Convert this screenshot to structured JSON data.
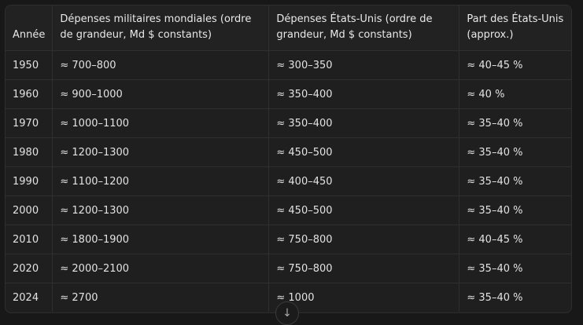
{
  "table": {
    "headers": [
      "Année",
      "Dépenses militaires mondiales (ordre de grandeur, Md $ constants)",
      "Dépenses États-Unis (ordre de grandeur, Md $ constants)",
      "Part des États-Unis (approx.)"
    ],
    "rows": [
      [
        "1950",
        "≈ 700–800",
        "≈ 300–350",
        "≈ 40–45 %"
      ],
      [
        "1960",
        "≈ 900–1000",
        "≈ 350–400",
        "≈ 40 %"
      ],
      [
        "1970",
        "≈ 1000–1100",
        "≈ 350–400",
        "≈ 35–40 %"
      ],
      [
        "1980",
        "≈ 1200–1300",
        "≈ 450–500",
        "≈ 35–40 %"
      ],
      [
        "1990",
        "≈ 1100–1200",
        "≈ 400–450",
        "≈ 35–40 %"
      ],
      [
        "2000",
        "≈ 1200–1300",
        "≈ 450–500",
        "≈ 35–40 %"
      ],
      [
        "2010",
        "≈ 1800–1900",
        "≈ 750–800",
        "≈ 40–45 %"
      ],
      [
        "2020",
        "≈ 2000–2100",
        "≈ 750–800",
        "≈ 35–40 %"
      ],
      [
        "2024",
        "≈ 2700",
        "≈ 1000",
        "≈ 35–40 %"
      ]
    ]
  },
  "scroll_button": {
    "icon": "arrow-down-icon",
    "glyph": "↓"
  }
}
